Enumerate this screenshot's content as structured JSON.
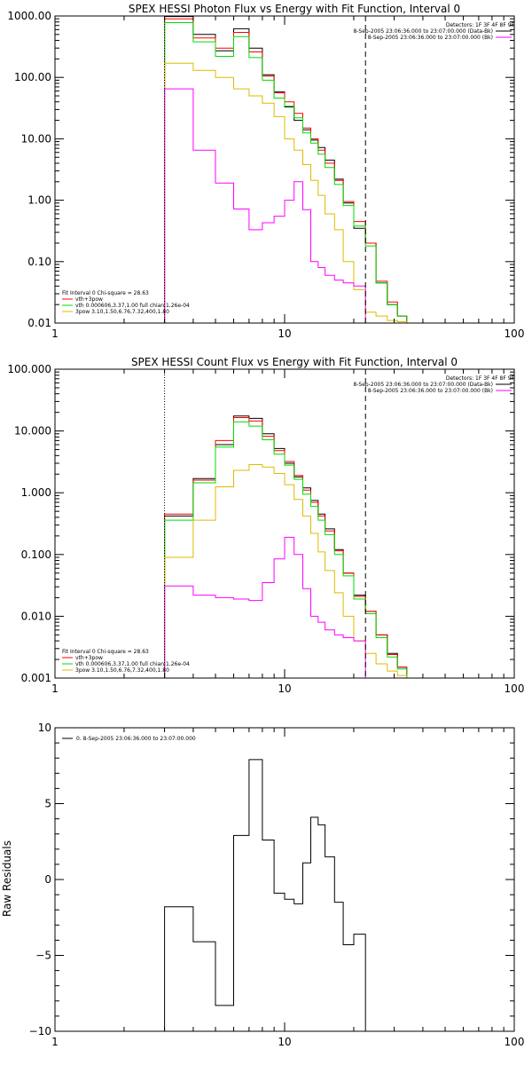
{
  "colors": {
    "total": "#000000",
    "sum": "#ff0000",
    "vth": "#00dd00",
    "pow": "#ddbb00",
    "bk": "#ff00ff"
  },
  "chart_data": [
    {
      "type": "line",
      "title": "SPEX HESSI Photon Flux vs Energy with Fit Function, Interval 0",
      "xscale": "log",
      "yscale": "log",
      "xlim": [
        1,
        100
      ],
      "ylim": [
        0.01,
        1000
      ],
      "xticks": [
        "1",
        "10",
        "100"
      ],
      "yticks": [
        "1000.00",
        "100.00",
        "10.00",
        "1.00",
        "0.10",
        "0.01"
      ],
      "fit_range": [
        3.0,
        22.5
      ],
      "info_right": [
        "Detectors: 1F 3F 4F 8F 9F",
        "8-Sep-2005 23:06:36.000 to 23:07:00.000 (Data-Bk)",
        "8-Sep-2005 23:06:36.000 to 23:07:00.000 (Bk)"
      ],
      "fit_legend": [
        "Fit Interval 0   Chi-square = 28.63",
        "vth+3pow",
        "vth 0.000606,3.37,1.00   full chian 1.26e-04",
        "3pow 3.10,1.50,6.76,7.32,400,1.80"
      ],
      "edges": [
        3.0,
        4.0,
        5.0,
        6.0,
        7.0,
        8.0,
        9.0,
        10.0,
        11.0,
        12.0,
        13.0,
        14.0,
        15.0,
        16.5,
        18.0,
        20.0,
        22.5,
        25.0,
        28.0,
        31.0,
        34.0
      ],
      "series": [
        {
          "name": "Data-Bk",
          "color_key": "total",
          "values": [
            980,
            500,
            270,
            620,
            300,
            110,
            58,
            33,
            20,
            14,
            9.5,
            7.2,
            4.5,
            2.2,
            0.9,
            0.35,
            0.2,
            0.045,
            0.02,
            0.013
          ]
        },
        {
          "name": "vth+3pow",
          "color_key": "sum",
          "values": [
            900,
            440,
            300,
            540,
            260,
            105,
            56,
            40,
            26,
            15,
            10,
            6.5,
            4.0,
            2.1,
            0.95,
            0.45,
            0.2,
            0.048,
            0.022,
            0.013
          ]
        },
        {
          "name": "vth",
          "color_key": "vth",
          "values": [
            780,
            380,
            220,
            460,
            210,
            90,
            46,
            34,
            22,
            12.5,
            8.5,
            5.6,
            3.4,
            1.8,
            0.82,
            0.38,
            0.18,
            0.045,
            0.02,
            0.013
          ]
        },
        {
          "name": "3pow",
          "color_key": "pow",
          "values": [
            170,
            130,
            100,
            65,
            50,
            38,
            23,
            10,
            6.5,
            3.8,
            2.1,
            1.2,
            0.6,
            0.33,
            0.1,
            0.035,
            0.015,
            0.013,
            0.011,
            0.0105
          ]
        },
        {
          "name": "Bk",
          "color_key": "bk",
          "values": [
            65,
            6.5,
            1.9,
            0.72,
            0.33,
            0.43,
            0.55,
            1.0,
            2.0,
            0.7,
            0.1,
            0.08,
            0.06,
            0.05,
            0.045,
            0.04
          ]
        }
      ]
    },
    {
      "type": "line",
      "title": "SPEX HESSI Count Flux vs Energy with Fit Function, Interval 0",
      "xscale": "log",
      "yscale": "log",
      "xlim": [
        1,
        100
      ],
      "ylim": [
        0.001,
        100
      ],
      "xticks": [
        "1",
        "10",
        "100"
      ],
      "yticks": [
        "100.000",
        "10.000",
        "1.000",
        "0.100",
        "0.010",
        "0.001"
      ],
      "fit_range": [
        3.0,
        22.5
      ],
      "info_right": [
        "Detectors: 1F 3F 4F 8F 9F",
        "8-Sep-2005 23:06:36.000 to 23:07:00.000 (Data-Bk)",
        "8-Sep-2005 23:06:36.000 to 23:07:00.000 (Bk)"
      ],
      "fit_legend": [
        "Fit Interval 0   Chi-square = 28.63",
        "vth+3pow",
        "vth 0.000606,3.37,1.00   full chian 1.26e-04",
        "3pow 3.10,1.50,6.76,7.32,400,1.80"
      ],
      "edges": [
        3.0,
        4.0,
        5.0,
        6.0,
        7.0,
        8.0,
        9.0,
        10.0,
        11.0,
        12.0,
        13.0,
        14.0,
        15.0,
        16.5,
        18.0,
        20.0,
        22.5,
        25.0,
        28.0,
        31.0,
        34.0
      ],
      "series": [
        {
          "name": "Data-Bk",
          "color_key": "total",
          "values": [
            0.42,
            1.7,
            6.0,
            17.5,
            16.0,
            9.0,
            5.2,
            3.0,
            1.8,
            1.2,
            0.75,
            0.45,
            0.26,
            0.12,
            0.05,
            0.022,
            0.012,
            0.005,
            0.0025,
            0.0015
          ]
        },
        {
          "name": "vth+3pow",
          "color_key": "sum",
          "values": [
            0.45,
            1.6,
            7.0,
            16.5,
            14.5,
            8.2,
            4.8,
            3.2,
            1.9,
            1.1,
            0.7,
            0.42,
            0.24,
            0.115,
            0.05,
            0.021,
            0.012,
            0.005,
            0.0024,
            0.0015
          ]
        },
        {
          "name": "vth",
          "color_key": "vth",
          "values": [
            0.36,
            1.45,
            5.5,
            14.0,
            12.0,
            7.2,
            4.2,
            2.8,
            1.65,
            0.95,
            0.6,
            0.36,
            0.21,
            0.1,
            0.045,
            0.019,
            0.011,
            0.0045,
            0.0022,
            0.0014
          ]
        },
        {
          "name": "3pow",
          "color_key": "pow",
          "values": [
            0.09,
            0.36,
            1.25,
            2.3,
            2.85,
            2.6,
            2.05,
            1.35,
            0.78,
            0.42,
            0.22,
            0.11,
            0.055,
            0.024,
            0.01,
            0.004,
            0.0025,
            0.0017,
            0.0013,
            0.0011
          ]
        },
        {
          "name": "Bk",
          "color_key": "bk",
          "values": [
            0.031,
            0.022,
            0.02,
            0.019,
            0.018,
            0.035,
            0.085,
            0.19,
            0.1,
            0.028,
            0.01,
            0.008,
            0.006,
            0.005,
            0.0045,
            0.004
          ]
        }
      ]
    },
    {
      "type": "line",
      "title": "",
      "xscale": "log",
      "yscale": "linear",
      "xlim": [
        1,
        100
      ],
      "ylim": [
        -10,
        10
      ],
      "xticks": [
        "1",
        "10",
        "100"
      ],
      "yticks": [
        "10",
        "5",
        "0",
        "−5",
        "−10"
      ],
      "ylabel": "Raw Residuals",
      "legend": "0. 8-Sep-2005 23:06:36.000 to 23:07:00.000",
      "edges": [
        3.0,
        4.0,
        5.0,
        6.0,
        7.0,
        8.0,
        9.0,
        10.0,
        11.0,
        12.0,
        13.0,
        14.0,
        15.0,
        16.5,
        18.0,
        20.0,
        22.5
      ],
      "values": [
        -1.8,
        -4.1,
        -8.3,
        2.9,
        7.9,
        2.6,
        -0.9,
        -1.3,
        -1.6,
        1.1,
        4.1,
        3.6,
        1.5,
        -1.5,
        -4.3,
        -3.6
      ]
    }
  ]
}
